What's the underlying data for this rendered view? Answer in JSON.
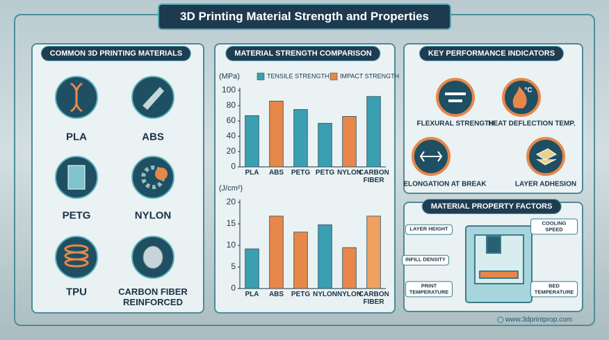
{
  "title": "3D Printing Material Strength and Properties",
  "materials_panel": {
    "heading": "COMMON 3D PRINTING MATERIALS",
    "items": [
      "PLA",
      "ABS",
      "PETG",
      "NYLON",
      "TPU",
      "CARBON FIBER REINFORCED"
    ]
  },
  "strength_panel": {
    "heading": "MATERIAL STRENGTH COMPARISON"
  },
  "chart_data": [
    {
      "type": "bar",
      "y_label": "(MPa)",
      "categories": [
        "PLA",
        "ABS",
        "PETG",
        "PETG",
        "NYLON",
        "CARBON FIBER"
      ],
      "series": [
        {
          "name": "TENSILE STRENGTH",
          "color": "#3a9fb0",
          "values": [
            67,
            null,
            75,
            57,
            null,
            92
          ]
        },
        {
          "name": "IMPACT STRENGTH",
          "color": "#e8874a",
          "values": [
            null,
            86,
            null,
            null,
            66,
            null
          ]
        }
      ],
      "ylim": [
        0,
        100
      ],
      "yticks": [
        0,
        20,
        40,
        60,
        80,
        100
      ]
    },
    {
      "type": "bar",
      "y_label": "(J/cm²)",
      "categories": [
        "PLA",
        "ABS",
        "PETG",
        "NYLON",
        "NYLON",
        "CARBON FIBER"
      ],
      "values": [
        9.2,
        16.8,
        13.1,
        14.8,
        9.5,
        16.8
      ],
      "colors": [
        "#3a9fb0",
        "#e8874a",
        "#e8874a",
        "#3a9fb0",
        "#e8874a",
        "#f0a060"
      ],
      "ylim": [
        0,
        20
      ],
      "yticks": [
        0,
        5,
        10,
        15,
        20
      ]
    }
  ],
  "kpi_panel": {
    "heading": "KEY PERFORMANCE INDICATORS",
    "items": [
      "FLEXURAL STRENGTH",
      "HEAT DEFLECTION TEMP.",
      "ELONGATION AT BREAK",
      "LAYER ADHESION"
    ],
    "heat_icon_label": "°C"
  },
  "factors_panel": {
    "heading": "MATERIAL PROPERTY FACTORS",
    "labels": [
      "LAYER HEIGHT",
      "COOLING SPEED",
      "INFILL DENSITY",
      "PRINT TEMPERATURE",
      "BED TEMPERATURE"
    ]
  },
  "footer": "www.3dprintprop.com"
}
